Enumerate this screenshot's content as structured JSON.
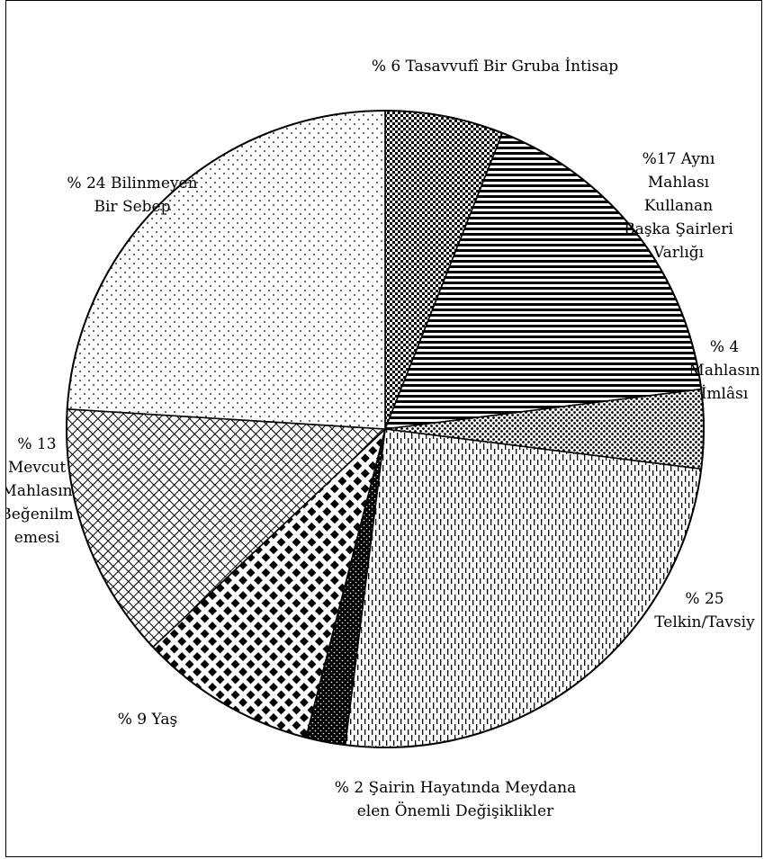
{
  "chart_data": {
    "type": "pie",
    "title": "",
    "start": "12 o'clock",
    "direction": "clockwise",
    "slices": [
      {
        "value": 6,
        "label_lines": [
          "% 6 Tasavvufî Bir Gruba İntisap"
        ],
        "pattern": "checker"
      },
      {
        "value": 17,
        "label_lines": [
          "%17 Aynı",
          "Mahlası",
          "Kullanan",
          "Başka Şairleri",
          "Varlığı"
        ],
        "pattern": "hlines"
      },
      {
        "value": 4,
        "label_lines": [
          "% 4",
          "Mahlasın",
          "İmlâsı"
        ],
        "pattern": "dots"
      },
      {
        "value": 25,
        "label_lines": [
          "% 25",
          "Telkin/Tavsiy"
        ],
        "pattern": "dashed-vlines"
      },
      {
        "value": 2,
        "label_lines": [
          "% 2 Şairin Hayatında Meydana",
          "elen Önemli Değişiklikler"
        ],
        "pattern": "black-dots"
      },
      {
        "value": 9,
        "label_lines": [
          "% 9 Yaş"
        ],
        "pattern": "diamonds"
      },
      {
        "value": 13,
        "label_lines": [
          "% 13",
          "Mevcut",
          "Mahlasın",
          "Beğenilm",
          "emesi"
        ],
        "pattern": "crosshatch"
      },
      {
        "value": 24,
        "label_lines": [
          "% 24 Bilinmeyen",
          "Bir Sebep"
        ],
        "pattern": "sparse-dots"
      }
    ],
    "colors": {
      "fill_background": "#ffffff",
      "ink": "#000000"
    }
  }
}
